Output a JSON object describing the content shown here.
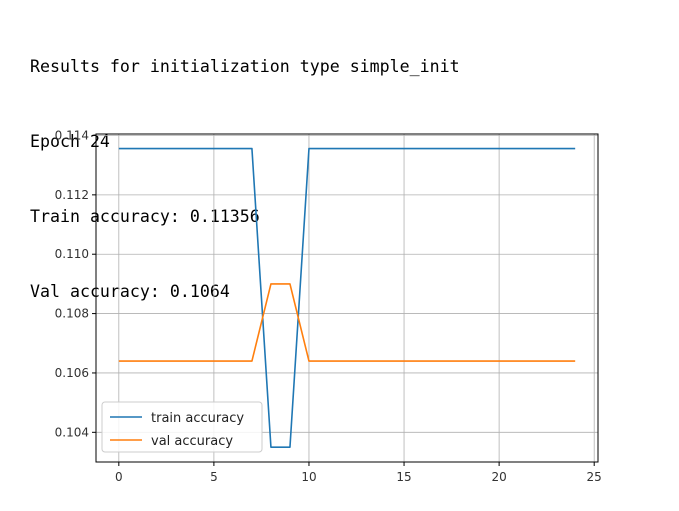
{
  "output": {
    "line1": "Results for initialization type simple_init",
    "line2": "Epoch 24",
    "line3": "Train accuracy: 0.11356",
    "line4": "Val accuracy: 0.1064"
  },
  "chart_data": {
    "type": "line",
    "title": "",
    "xlabel": "",
    "ylabel": "",
    "x": [
      0,
      1,
      2,
      3,
      4,
      5,
      6,
      7,
      8,
      9,
      10,
      11,
      12,
      13,
      14,
      15,
      16,
      17,
      18,
      19,
      20,
      21,
      22,
      23,
      24
    ],
    "series": [
      {
        "name": "train accuracy",
        "color": "#1f77b4",
        "values": [
          0.11356,
          0.11356,
          0.11356,
          0.11356,
          0.11356,
          0.11356,
          0.11356,
          0.11356,
          0.1035,
          0.1035,
          0.11356,
          0.11356,
          0.11356,
          0.11356,
          0.11356,
          0.11356,
          0.11356,
          0.11356,
          0.11356,
          0.11356,
          0.11356,
          0.11356,
          0.11356,
          0.11356,
          0.11356
        ]
      },
      {
        "name": "val accuracy",
        "color": "#ff7f0e",
        "values": [
          0.1064,
          0.1064,
          0.1064,
          0.1064,
          0.1064,
          0.1064,
          0.1064,
          0.1064,
          0.109,
          0.109,
          0.1064,
          0.1064,
          0.1064,
          0.1064,
          0.1064,
          0.1064,
          0.1064,
          0.1064,
          0.1064,
          0.1064,
          0.1064,
          0.1064,
          0.1064,
          0.1064,
          0.1064
        ]
      }
    ],
    "xlim": [
      -1.2,
      25.2
    ],
    "ylim": [
      0.103,
      0.11405
    ],
    "xticks": [
      0,
      5,
      10,
      15,
      20,
      25
    ],
    "yticks": [
      0.104,
      0.106,
      0.108,
      0.11,
      0.112,
      0.114
    ],
    "ytick_labels": [
      "0.104",
      "0.106",
      "0.108",
      "0.110",
      "0.112",
      "0.114"
    ],
    "grid": true,
    "legend_position": "lower-left"
  }
}
